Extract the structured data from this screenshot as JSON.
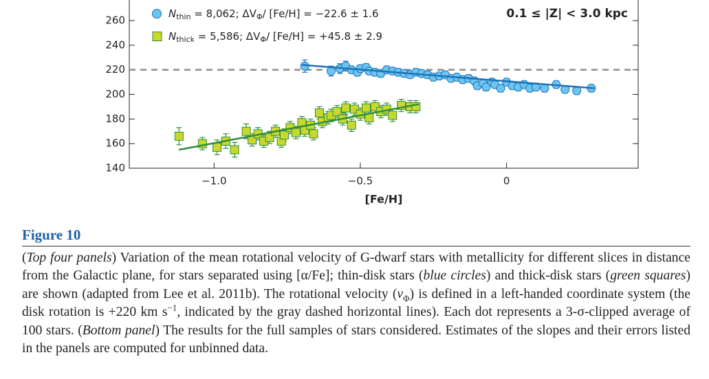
{
  "chart_data": {
    "type": "scatter",
    "x_label": "[Fe/H]",
    "annotation": "0.1 ≤ |Z| < 3.0 kpc",
    "xlim": [
      -1.29,
      0.45
    ],
    "xticks": [
      {
        "value": -1.0,
        "label": "−1.0"
      },
      {
        "value": -0.5,
        "label": "−0.5"
      },
      0
    ],
    "ylim": [
      140,
      280
    ],
    "yticks": [
      140,
      160,
      180,
      200,
      220,
      240,
      260
    ],
    "reference_line": 220,
    "reference_color": "#8c8c8c",
    "series": [
      {
        "marker": "circle",
        "color": "#6cc4ef",
        "edge_color": "#1b72b8",
        "legend": [
          {
            "text": "N",
            "style": "i"
          },
          {
            "text": "thin",
            "style": "sub"
          },
          {
            "text": " = 8,062; ΔV",
            "style": ""
          },
          {
            "text": "Φ",
            "style": "sub"
          },
          {
            "text": "/ [Fe/H] = −22.6 ± 1.6",
            "style": ""
          }
        ],
        "x": [
          -0.69,
          -0.6,
          -0.57,
          -0.55,
          -0.53,
          -0.51,
          -0.5,
          -0.48,
          -0.47,
          -0.45,
          -0.43,
          -0.41,
          -0.39,
          -0.37,
          -0.35,
          -0.33,
          -0.31,
          -0.29,
          -0.27,
          -0.25,
          -0.23,
          -0.21,
          -0.19,
          -0.17,
          -0.15,
          -0.13,
          -0.11,
          -0.1,
          -0.08,
          -0.07,
          -0.05,
          -0.04,
          -0.02,
          0.0,
          0.02,
          0.04,
          0.06,
          0.08,
          0.1,
          0.13,
          0.17,
          0.2,
          0.24,
          0.29
        ],
        "values": [
          223,
          219,
          221,
          223,
          220,
          218,
          221,
          222,
          219,
          218,
          217,
          220,
          219,
          218,
          217,
          216,
          218,
          217,
          216,
          214,
          215,
          216,
          213,
          214,
          212,
          213,
          211,
          207,
          209,
          206,
          210,
          208,
          205,
          210,
          207,
          206,
          208,
          205,
          206,
          205,
          208,
          204,
          203,
          205
        ],
        "errors": [
          5,
          4,
          4,
          4,
          3,
          3,
          3,
          3,
          3,
          3,
          3,
          3,
          3,
          3,
          3,
          3,
          3,
          3,
          3,
          3,
          3,
          3,
          3,
          3,
          3,
          3,
          3,
          3,
          3,
          3,
          3,
          3,
          3,
          3,
          3,
          3,
          3,
          3,
          3,
          3,
          3,
          3,
          3,
          3
        ],
        "fit_x": [
          -0.7,
          0.3
        ],
        "fit_y": [
          224,
          205
        ],
        "fit_color": "#1b72b8"
      },
      {
        "marker": "square",
        "color": "#c9d92c",
        "edge_color": "#2f8c3b",
        "legend": [
          {
            "text": "N",
            "style": "i"
          },
          {
            "text": "thick",
            "style": "sub"
          },
          {
            "text": " = 5,586; ΔV",
            "style": ""
          },
          {
            "text": "Φ",
            "style": "sub"
          },
          {
            "text": "/ [Fe/H] = +45.8 ± 2.9",
            "style": ""
          }
        ],
        "x": [
          -1.12,
          -1.04,
          -0.99,
          -0.96,
          -0.93,
          -0.89,
          -0.87,
          -0.85,
          -0.83,
          -0.81,
          -0.79,
          -0.77,
          -0.76,
          -0.74,
          -0.72,
          -0.7,
          -0.69,
          -0.67,
          -0.66,
          -0.64,
          -0.63,
          -0.61,
          -0.6,
          -0.58,
          -0.56,
          -0.55,
          -0.53,
          -0.52,
          -0.5,
          -0.48,
          -0.47,
          -0.45,
          -0.43,
          -0.41,
          -0.39,
          -0.36,
          -0.33,
          -0.31
        ],
        "values": [
          166,
          160,
          157,
          162,
          155,
          170,
          163,
          168,
          162,
          165,
          170,
          162,
          167,
          173,
          169,
          177,
          171,
          175,
          168,
          185,
          178,
          181,
          183,
          186,
          180,
          189,
          175,
          188,
          184,
          189,
          181,
          190,
          186,
          188,
          183,
          191,
          190,
          190
        ],
        "errors": [
          7,
          5,
          6,
          6,
          6,
          6,
          5,
          5,
          5,
          5,
          5,
          5,
          5,
          5,
          5,
          5,
          5,
          5,
          5,
          5,
          5,
          5,
          5,
          5,
          5,
          5,
          5,
          5,
          5,
          5,
          5,
          5,
          5,
          5,
          5,
          5,
          5,
          5
        ],
        "fit_x": [
          -1.12,
          -0.3
        ],
        "fit_y": [
          155,
          192
        ],
        "fit_color": "#2f8c3b"
      }
    ]
  },
  "caption": {
    "label": "Figure 10",
    "runs": [
      {
        "text": "(",
        "style": ""
      },
      {
        "text": "Top four panels",
        "style": "i"
      },
      {
        "text": ") Variation of the mean rotational velocity of G-dwarf stars with metallicity for different slices in distance from the Galactic plane, for stars separated using [α/Fe]; thin-disk stars (",
        "style": ""
      },
      {
        "text": "blue circles",
        "style": "i"
      },
      {
        "text": ") and thick-disk stars (",
        "style": ""
      },
      {
        "text": "green squares",
        "style": "i"
      },
      {
        "text": ") are shown (adapted from Lee et al. 2011b). The rotational velocity (",
        "style": ""
      },
      {
        "text": "v",
        "style": "i"
      },
      {
        "text": "Φ",
        "style": "sub"
      },
      {
        "text": ") is defined in a left-handed coordinate system (the disk rotation is +220 km s",
        "style": ""
      },
      {
        "text": "−1",
        "style": "sup"
      },
      {
        "text": ", indicated by the gray dashed horizontal lines). Each dot represents a 3-σ-clipped average of 100 stars. (",
        "style": ""
      },
      {
        "text": "Bottom panel",
        "style": "i"
      },
      {
        "text": ") The results for the full samples of stars considered. Estimates of the slopes and their errors listed in the panels are computed for unbinned data.",
        "style": ""
      }
    ]
  }
}
